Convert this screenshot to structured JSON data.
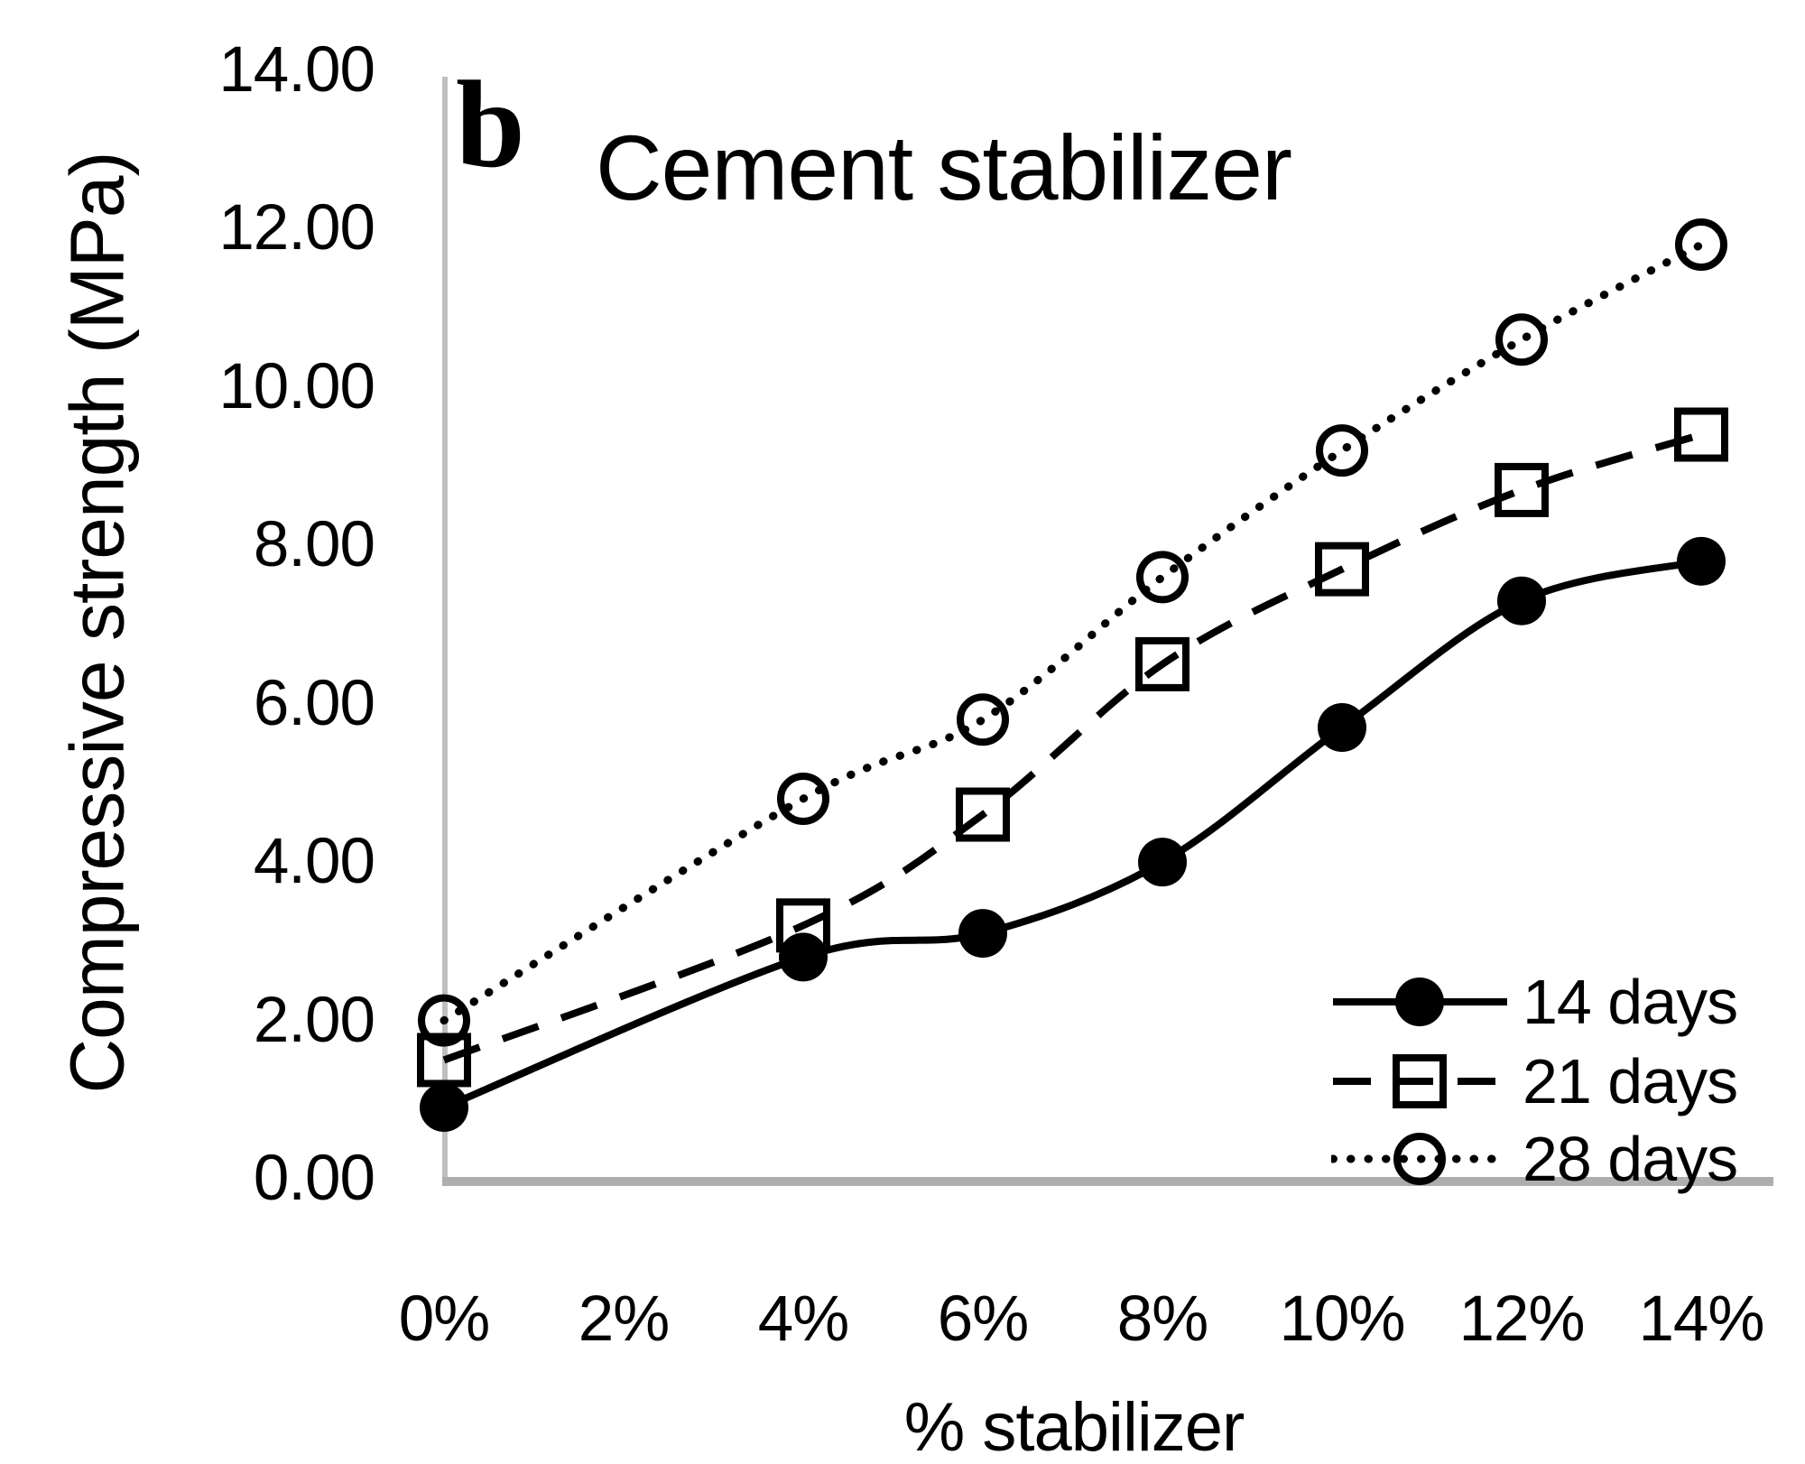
{
  "figure": {
    "panel_label": "b",
    "title": "Cement stabilizer",
    "xlabel": "% stabilizer",
    "ylabel": "Compressive strength  (MPa)"
  },
  "axes": {
    "x_tick_labels": [
      "0%",
      "2%",
      "4%",
      "6%",
      "8%",
      "10%",
      "12%",
      "14%"
    ],
    "y_tick_labels": [
      "0.00",
      "2.00",
      "4.00",
      "6.00",
      "8.00",
      "10.00",
      "12.00",
      "14.00"
    ],
    "axis_color": "#bfbfbf",
    "line_color": "#000000"
  },
  "legend": {
    "position": "inside-bottom-right",
    "items": [
      {
        "label": "14 days",
        "marker": "filled-circle",
        "line": "solid"
      },
      {
        "label": "21 days",
        "marker": "open-square",
        "line": "dashed"
      },
      {
        "label": "28 days",
        "marker": "open-circle",
        "line": "dotted"
      }
    ]
  },
  "chart_data": {
    "type": "line",
    "title": "Cement stabilizer",
    "panel_label": "b",
    "xlabel": "% stabilizer",
    "ylabel": "Compressive strength (MPa)",
    "categories": [
      "0%",
      "2%",
      "4%",
      "6%",
      "8%",
      "10%",
      "12%",
      "14%"
    ],
    "ylim": [
      0,
      14
    ],
    "y_tick_step": 2,
    "grid": false,
    "legend_position": "inside-bottom-right",
    "series": [
      {
        "name": "14 days",
        "line": "solid",
        "marker": "filled-circle",
        "points": [
          {
            "x": "0%",
            "y": 0.9
          },
          {
            "x": "4%",
            "y": 2.8
          },
          {
            "x": "6%",
            "y": 3.1
          },
          {
            "x": "8%",
            "y": 4.0
          },
          {
            "x": "10%",
            "y": 5.7
          },
          {
            "x": "12%",
            "y": 7.3
          },
          {
            "x": "14%",
            "y": 7.8
          }
        ]
      },
      {
        "name": "21 days",
        "line": "dashed",
        "marker": "open-square",
        "points": [
          {
            "x": "0%",
            "y": 1.5
          },
          {
            "x": "4%",
            "y": 3.2
          },
          {
            "x": "6%",
            "y": 4.6
          },
          {
            "x": "8%",
            "y": 6.5
          },
          {
            "x": "10%",
            "y": 7.7
          },
          {
            "x": "12%",
            "y": 8.7
          },
          {
            "x": "14%",
            "y": 9.4
          }
        ]
      },
      {
        "name": "28 days",
        "line": "dotted",
        "marker": "open-circle",
        "points": [
          {
            "x": "0%",
            "y": 2.0
          },
          {
            "x": "4%",
            "y": 4.8
          },
          {
            "x": "6%",
            "y": 5.8
          },
          {
            "x": "8%",
            "y": 7.6
          },
          {
            "x": "10%",
            "y": 9.2
          },
          {
            "x": "12%",
            "y": 10.6
          },
          {
            "x": "14%",
            "y": 11.8
          }
        ]
      }
    ]
  }
}
